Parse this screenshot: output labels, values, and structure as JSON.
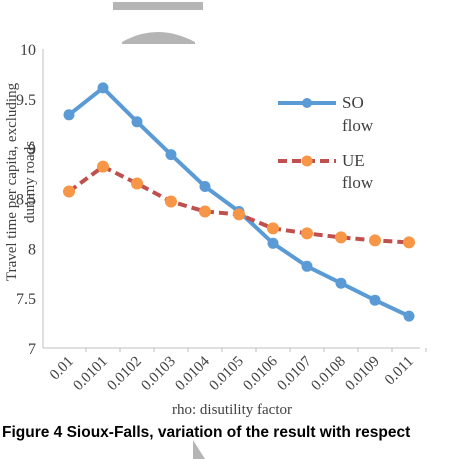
{
  "chart_data": {
    "type": "line",
    "title": "",
    "xlabel": "rho: disutility factor",
    "ylabel": "Travel time per capita, excluding dummy roads",
    "categories": [
      "0.01",
      "0.0101",
      "0.0102",
      "0.0103",
      "0.0104",
      "0.0105",
      "0.0106",
      "0.0107",
      "0.0108",
      "0.0109",
      "0.011"
    ],
    "y_tick_labels": [
      "10",
      "9.5",
      "9",
      "8.5",
      "8",
      "7.5",
      "7"
    ],
    "y_tick_values": [
      10,
      9.5,
      9,
      8.5,
      8,
      7.5,
      7
    ],
    "ylim": [
      7,
      10
    ],
    "grid": false,
    "legend_position": "right",
    "series": [
      {
        "name": "SO flow",
        "legend_lines": [
          "SO",
          "flow"
        ],
        "color": "#5b9bd5",
        "style": "solid",
        "values": [
          9.34,
          9.61,
          9.27,
          8.94,
          8.62,
          8.37,
          8.05,
          7.82,
          7.65,
          7.48,
          7.32
        ]
      },
      {
        "name": "UE flow",
        "legend_lines": [
          "UE",
          "flow"
        ],
        "color": "#c0504d",
        "marker_color": "#f79646",
        "style": "dashed",
        "values": [
          8.57,
          8.82,
          8.65,
          8.47,
          8.37,
          8.34,
          8.2,
          8.15,
          8.11,
          8.08,
          8.06
        ]
      }
    ]
  },
  "caption": "Figure 4 Sioux-Falls, variation of the result with respect",
  "colors": {
    "so_line": "#5b9bd5",
    "ue_line": "#c0504d",
    "ue_marker": "#f79646",
    "deco_gray": "#b5b5b5"
  }
}
